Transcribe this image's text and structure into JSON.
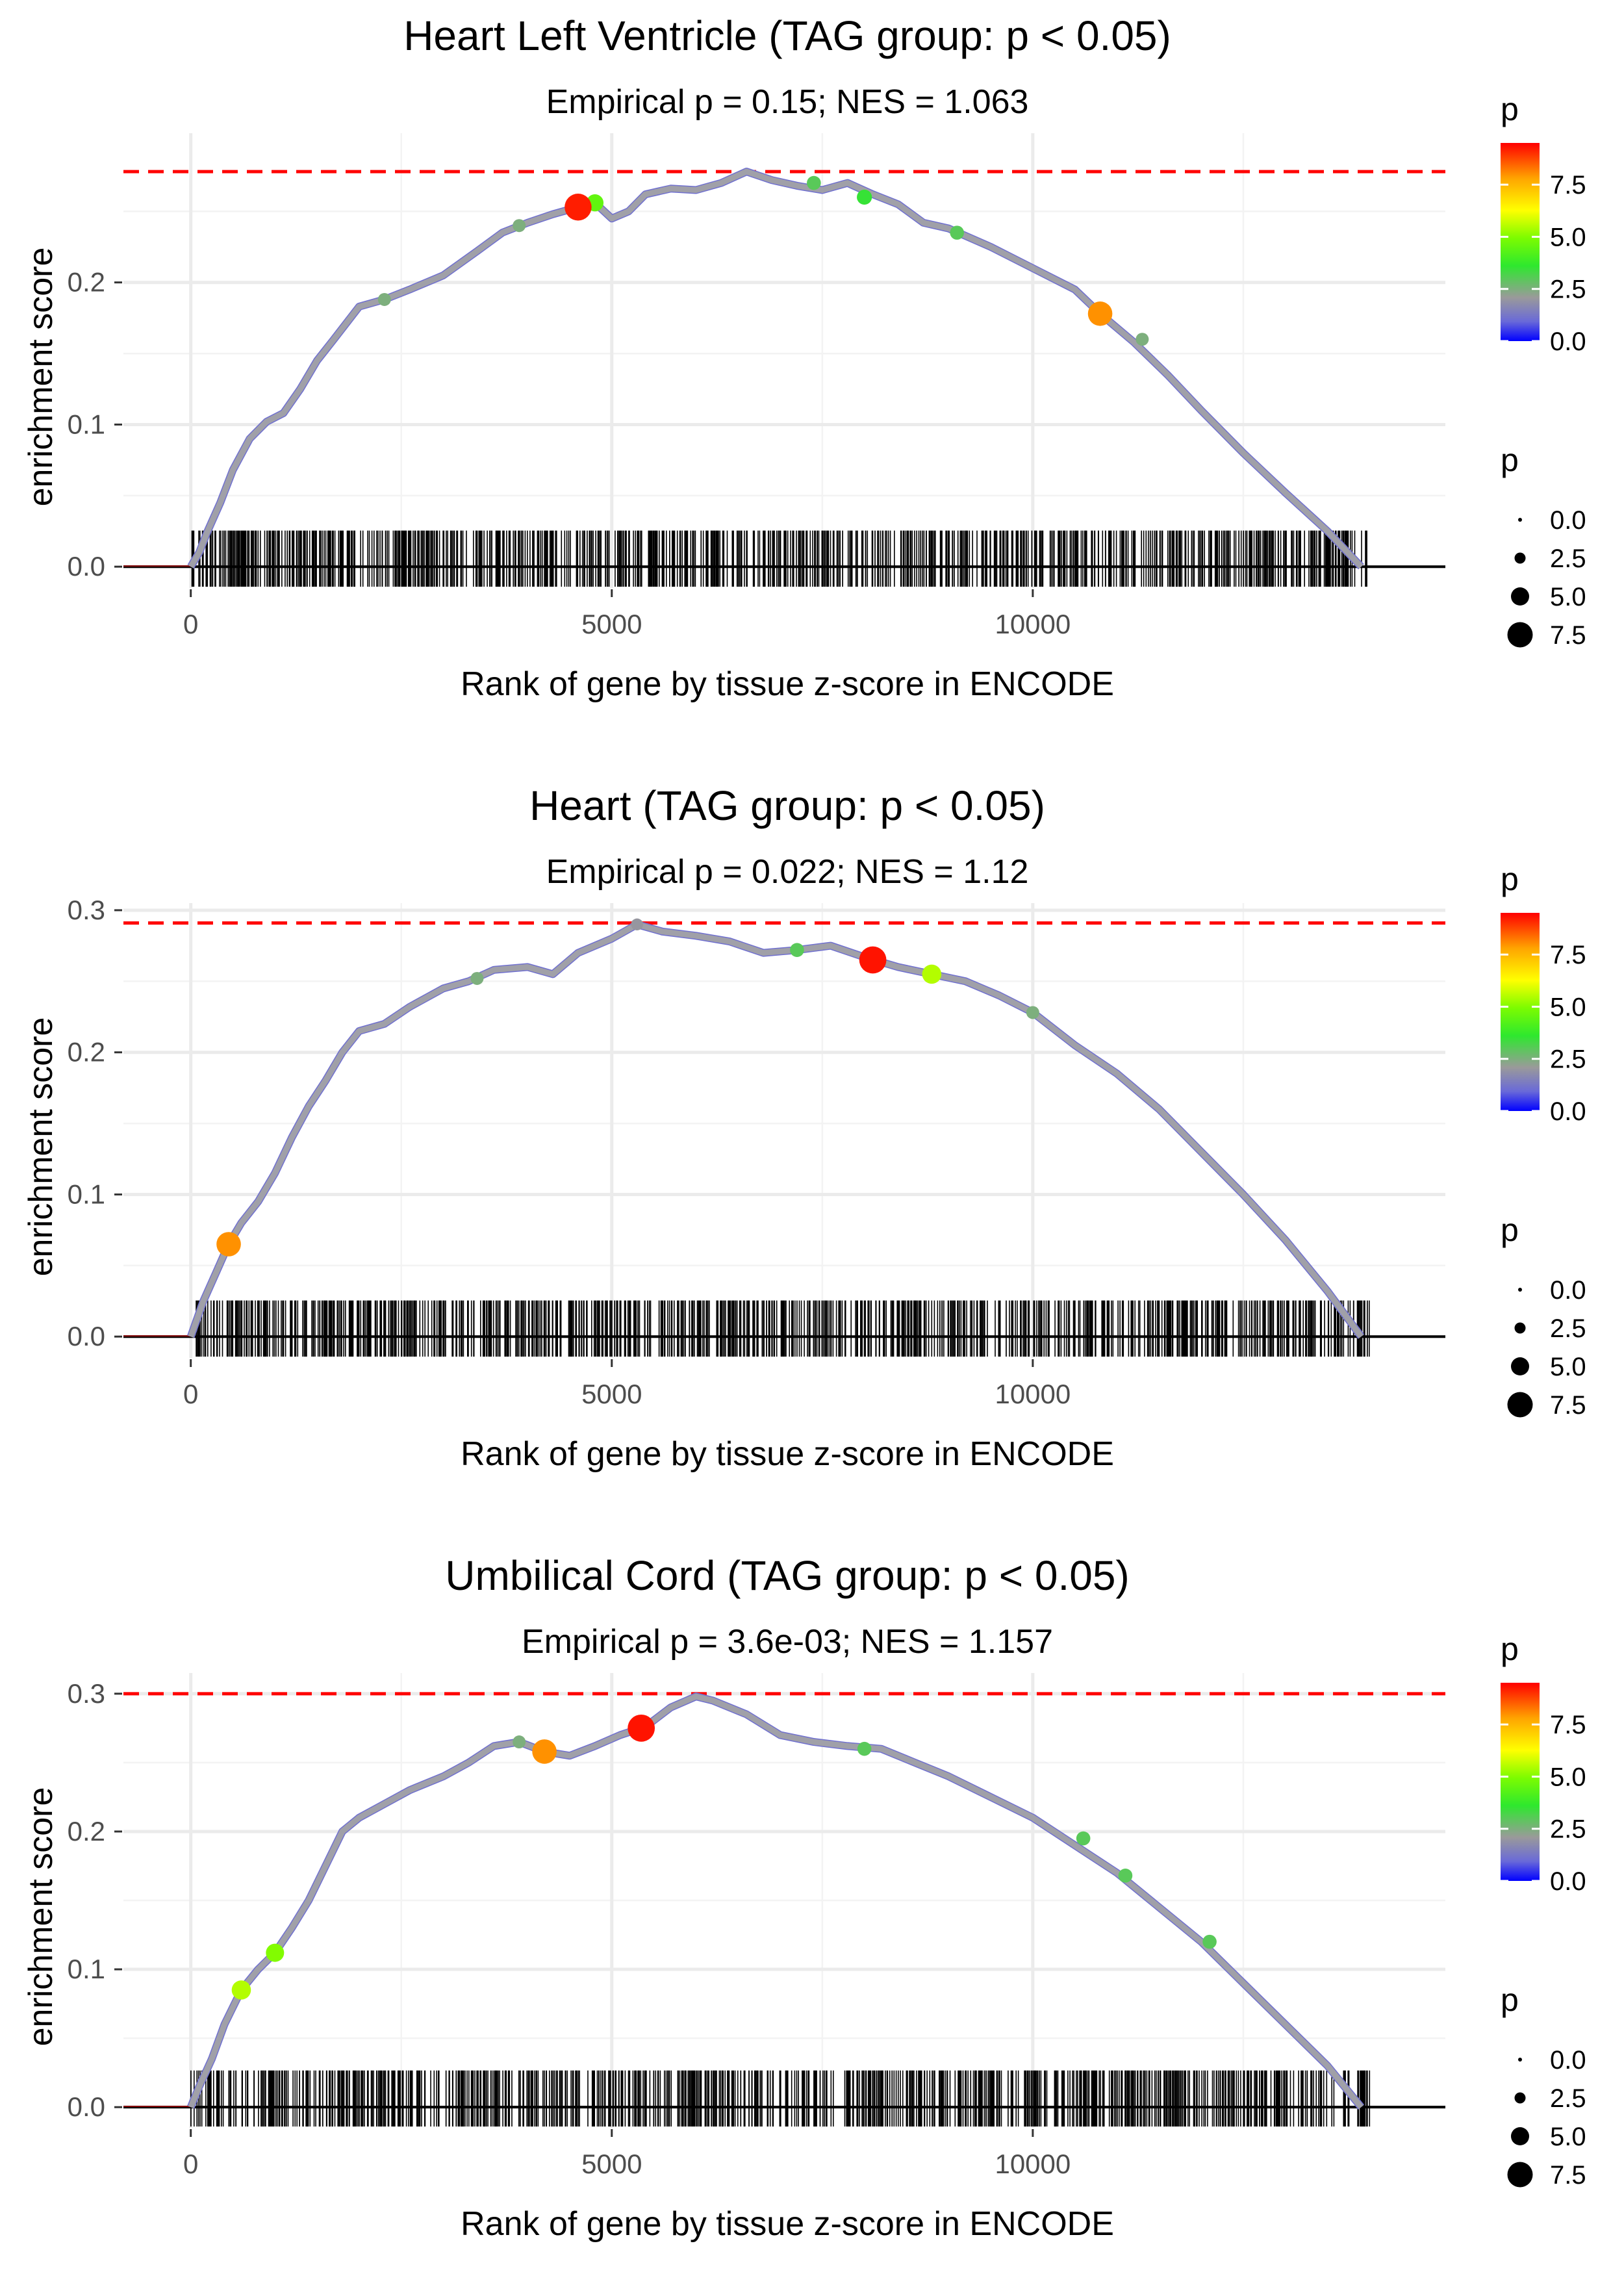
{
  "chart_data": [
    {
      "type": "line",
      "title": "Heart Left Ventricle (TAG group: p < 0.05)",
      "subtitle": "Empirical p = 0.15; NES = 1.063",
      "xlabel": "Rank of gene by tissue z-score in ENCODE",
      "ylabel": "enrichment score",
      "xlim": [
        -800,
        14900
      ],
      "ylim": [
        -0.015,
        0.305
      ],
      "x_ticks": [
        0,
        5000,
        10000
      ],
      "x_tick_labels": [
        "0",
        "5000",
        "10000"
      ],
      "y_ticks": [
        0.0,
        0.1,
        0.2
      ],
      "y_tick_labels": [
        "0.0",
        "0.1",
        "0.2"
      ],
      "max_es": 0.278,
      "series": [
        {
          "name": "running enrichment score",
          "x": [
            0,
            100,
            200,
            350,
            500,
            700,
            900,
            1100,
            1300,
            1500,
            1700,
            2000,
            2300,
            2600,
            3000,
            3400,
            3700,
            4000,
            4300,
            4600,
            4800,
            5000,
            5200,
            5400,
            5700,
            6000,
            6300,
            6600,
            6900,
            7200,
            7500,
            7800,
            8100,
            8400,
            8700,
            9000,
            9500,
            10000,
            10500,
            10800,
            11200,
            11600,
            12000,
            12500,
            13000,
            13500,
            13900
          ],
          "values": [
            0.0,
            0.01,
            0.025,
            0.045,
            0.068,
            0.09,
            0.102,
            0.108,
            0.125,
            0.145,
            0.16,
            0.183,
            0.188,
            0.195,
            0.205,
            0.222,
            0.235,
            0.242,
            0.248,
            0.253,
            0.256,
            0.245,
            0.25,
            0.262,
            0.266,
            0.265,
            0.27,
            0.278,
            0.272,
            0.268,
            0.265,
            0.27,
            0.262,
            0.255,
            0.242,
            0.238,
            0.225,
            0.21,
            0.195,
            0.178,
            0.158,
            0.135,
            0.11,
            0.08,
            0.052,
            0.025,
            0.0
          ]
        }
      ],
      "highlight_points": [
        {
          "x": 4600,
          "es": 0.253,
          "p": 9.2
        },
        {
          "x": 10800,
          "es": 0.178,
          "p": 8.0
        },
        {
          "x": 8000,
          "es": 0.26,
          "p": 3.5
        },
        {
          "x": 4800,
          "es": 0.256,
          "p": 4.5
        },
        {
          "x": 9100,
          "es": 0.235,
          "p": 3.0
        },
        {
          "x": 7400,
          "es": 0.27,
          "p": 3.0
        },
        {
          "x": 11300,
          "es": 0.16,
          "p": 2.5
        },
        {
          "x": 2300,
          "es": 0.188,
          "p": 2.5
        },
        {
          "x": 3900,
          "es": 0.24,
          "p": 2.5
        }
      ],
      "rug_xlim": [
        0,
        14000
      ],
      "rug_count": 900,
      "color_legend": {
        "title": "p",
        "labels": [
          "7.5",
          "5.0",
          "2.5",
          "0.0"
        ],
        "values": [
          7.5,
          5.0,
          2.5,
          0.0
        ],
        "max": 9.5
      },
      "size_legend": {
        "title": "p",
        "labels": [
          "0.0",
          "2.5",
          "5.0",
          "7.5"
        ],
        "values": [
          0.0,
          2.5,
          5.0,
          7.5
        ]
      }
    },
    {
      "type": "line",
      "title": "Heart (TAG group: p < 0.05)",
      "subtitle": "Empirical p = 0.022; NES = 1.12",
      "xlabel": "Rank of gene by tissue z-score in ENCODE",
      "ylabel": "enrichment score",
      "xlim": [
        -800,
        14900
      ],
      "ylim": [
        -0.015,
        0.305
      ],
      "x_ticks": [
        0,
        5000,
        10000
      ],
      "x_tick_labels": [
        "0",
        "5000",
        "10000"
      ],
      "y_ticks": [
        0.0,
        0.1,
        0.2,
        0.3
      ],
      "y_tick_labels": [
        "0.0",
        "0.1",
        "0.2",
        "0.3"
      ],
      "max_es": 0.291,
      "series": [
        {
          "name": "running enrichment score",
          "x": [
            0,
            150,
            300,
            450,
            600,
            800,
            1000,
            1200,
            1400,
            1600,
            1800,
            2000,
            2300,
            2600,
            3000,
            3300,
            3600,
            4000,
            4300,
            4600,
            5000,
            5300,
            5600,
            6000,
            6400,
            6800,
            7200,
            7600,
            8000,
            8400,
            8800,
            9200,
            9600,
            10000,
            10500,
            11000,
            11500,
            12000,
            12500,
            13000,
            13500,
            13900
          ],
          "values": [
            0.0,
            0.025,
            0.045,
            0.065,
            0.08,
            0.095,
            0.115,
            0.14,
            0.162,
            0.18,
            0.2,
            0.215,
            0.22,
            0.232,
            0.245,
            0.25,
            0.258,
            0.26,
            0.255,
            0.27,
            0.28,
            0.29,
            0.285,
            0.282,
            0.278,
            0.27,
            0.272,
            0.275,
            0.267,
            0.26,
            0.255,
            0.25,
            0.24,
            0.228,
            0.205,
            0.185,
            0.16,
            0.13,
            0.1,
            0.068,
            0.032,
            0.0
          ]
        }
      ],
      "highlight_points": [
        {
          "x": 450,
          "es": 0.065,
          "p": 8.0
        },
        {
          "x": 8100,
          "es": 0.265,
          "p": 9.3
        },
        {
          "x": 8800,
          "es": 0.255,
          "p": 5.5
        },
        {
          "x": 7200,
          "es": 0.272,
          "p": 3.0
        },
        {
          "x": 3400,
          "es": 0.252,
          "p": 2.5
        },
        {
          "x": 10000,
          "es": 0.228,
          "p": 2.5
        },
        {
          "x": 5300,
          "es": 0.29,
          "p": 2.0
        }
      ],
      "rug_xlim": [
        0,
        14000
      ],
      "rug_count": 900,
      "color_legend": {
        "title": "p",
        "labels": [
          "7.5",
          "5.0",
          "2.5",
          "0.0"
        ],
        "values": [
          7.5,
          5.0,
          2.5,
          0.0
        ],
        "max": 9.5
      },
      "size_legend": {
        "title": "p",
        "labels": [
          "0.0",
          "2.5",
          "5.0",
          "7.5"
        ],
        "values": [
          0.0,
          2.5,
          5.0,
          7.5
        ]
      }
    },
    {
      "type": "line",
      "title": "Umbilical Cord (TAG group: p < 0.05)",
      "subtitle": "Empirical p = 3.6e-03; NES = 1.157",
      "xlabel": "Rank of gene by tissue z-score in ENCODE",
      "ylabel": "enrichment score",
      "xlim": [
        -800,
        14900
      ],
      "ylim": [
        -0.015,
        0.315
      ],
      "x_ticks": [
        0,
        5000,
        10000
      ],
      "x_tick_labels": [
        "0",
        "5000",
        "10000"
      ],
      "y_ticks": [
        0.0,
        0.1,
        0.2,
        0.3
      ],
      "y_tick_labels": [
        "0.0",
        "0.1",
        "0.2",
        "0.3"
      ],
      "max_es": 0.3,
      "series": [
        {
          "name": "running enrichment score",
          "x": [
            0,
            100,
            250,
            400,
            600,
            800,
            1000,
            1200,
            1400,
            1600,
            1800,
            2000,
            2300,
            2600,
            3000,
            3300,
            3600,
            3900,
            4200,
            4500,
            4800,
            5100,
            5400,
            5700,
            6000,
            6200,
            6600,
            7000,
            7400,
            7800,
            8200,
            8600,
            9000,
            9500,
            10000,
            10500,
            11000,
            11500,
            12000,
            12500,
            13000,
            13500,
            13900
          ],
          "values": [
            0.0,
            0.015,
            0.035,
            0.06,
            0.085,
            0.1,
            0.112,
            0.13,
            0.15,
            0.175,
            0.2,
            0.21,
            0.22,
            0.23,
            0.24,
            0.25,
            0.262,
            0.265,
            0.258,
            0.255,
            0.262,
            0.27,
            0.276,
            0.29,
            0.298,
            0.295,
            0.285,
            0.27,
            0.265,
            0.262,
            0.26,
            0.25,
            0.24,
            0.225,
            0.21,
            0.19,
            0.17,
            0.145,
            0.12,
            0.09,
            0.06,
            0.03,
            0.0
          ]
        }
      ],
      "highlight_points": [
        {
          "x": 4200,
          "es": 0.258,
          "p": 8.0
        },
        {
          "x": 5350,
          "es": 0.275,
          "p": 9.3
        },
        {
          "x": 600,
          "es": 0.085,
          "p": 5.5
        },
        {
          "x": 1000,
          "es": 0.112,
          "p": 5.0
        },
        {
          "x": 8000,
          "es": 0.26,
          "p": 3.0
        },
        {
          "x": 10600,
          "es": 0.195,
          "p": 3.0
        },
        {
          "x": 11100,
          "es": 0.168,
          "p": 3.0
        },
        {
          "x": 12100,
          "es": 0.12,
          "p": 3.0
        },
        {
          "x": 3900,
          "es": 0.265,
          "p": 2.5
        }
      ],
      "rug_xlim": [
        0,
        14000
      ],
      "rug_count": 900,
      "color_legend": {
        "title": "p",
        "labels": [
          "7.5",
          "5.0",
          "2.5",
          "0.0"
        ],
        "values": [
          7.5,
          5.0,
          2.5,
          0.0
        ],
        "max": 9.5
      },
      "size_legend": {
        "title": "p",
        "labels": [
          "0.0",
          "2.5",
          "5.0",
          "7.5"
        ],
        "values": [
          0.0,
          2.5,
          5.0,
          7.5
        ]
      }
    }
  ]
}
